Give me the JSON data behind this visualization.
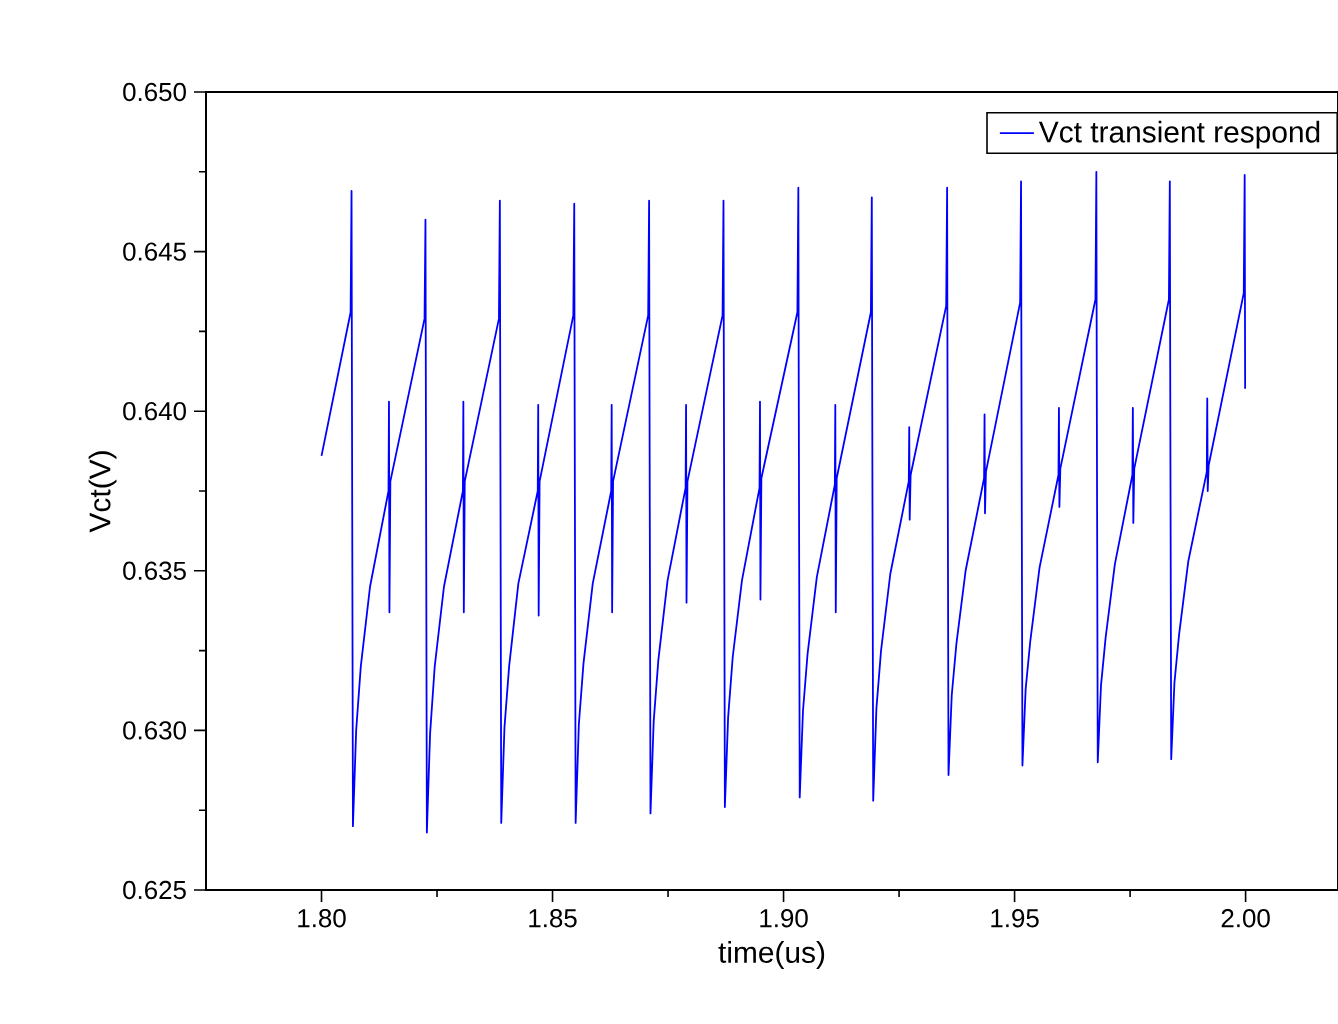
{
  "chart_data": {
    "type": "line",
    "xlabel": "time(us)",
    "ylabel": "Vct(V)",
    "legend": "top right",
    "xlim": [
      1.775,
      2.02
    ],
    "ylim": [
      0.625,
      0.65
    ],
    "xticks": [
      {
        "value": 1.8,
        "label": "1.80"
      },
      {
        "value": 1.825,
        "label": null
      },
      {
        "value": 1.85,
        "label": "1.85"
      },
      {
        "value": 1.875,
        "label": null
      },
      {
        "value": 1.9,
        "label": "1.90"
      },
      {
        "value": 1.925,
        "label": null
      },
      {
        "value": 1.95,
        "label": "1.95"
      },
      {
        "value": 1.975,
        "label": null
      },
      {
        "value": 2.0,
        "label": "2.00"
      }
    ],
    "yticks": [
      0.625,
      {
        "value": 0.6275,
        "label": null
      },
      {
        "value": 0.63,
        "label": "0.630"
      },
      {
        "value": 0.6325,
        "label": null
      },
      0.635,
      {
        "value": 0.6375,
        "label": null
      },
      {
        "value": 0.64,
        "label": "0.640"
      },
      {
        "value": 0.6425,
        "label": null
      },
      0.645,
      {
        "value": 0.6475,
        "label": null
      },
      {
        "value": 0.65,
        "label": "0.650"
      }
    ],
    "series": [
      {
        "name": "Vct transient respond",
        "color": "#0000ff",
        "x": [
          1.8,
          1.8063,
          1.8065,
          1.8066,
          1.8068,
          1.8075,
          1.8085,
          1.8105,
          1.8145,
          1.8146,
          1.8147,
          1.8149,
          1.8223,
          1.8225,
          1.8226,
          1.8228,
          1.8235,
          1.8245,
          1.8265,
          1.8306,
          1.8307,
          1.8308,
          1.831,
          1.8384,
          1.8386,
          1.8387,
          1.8389,
          1.8396,
          1.8406,
          1.8426,
          1.8468,
          1.8469,
          1.847,
          1.8472,
          1.8545,
          1.8547,
          1.8548,
          1.855,
          1.8557,
          1.8567,
          1.8587,
          1.8627,
          1.8628,
          1.8629,
          1.8631,
          1.8707,
          1.8709,
          1.871,
          1.8712,
          1.8719,
          1.8729,
          1.8749,
          1.8788,
          1.8789,
          1.879,
          1.8792,
          1.8868,
          1.887,
          1.8871,
          1.8873,
          1.888,
          1.889,
          1.891,
          1.8948,
          1.8949,
          1.895,
          1.8952,
          1.903,
          1.9032,
          1.9033,
          1.9035,
          1.9042,
          1.9052,
          1.9072,
          1.9111,
          1.9112,
          1.9113,
          1.9115,
          1.9189,
          1.9191,
          1.9192,
          1.9194,
          1.9201,
          1.9211,
          1.9231,
          1.9271,
          1.9272,
          1.9273,
          1.9275,
          1.9352,
          1.9354,
          1.9355,
          1.9357,
          1.9364,
          1.9374,
          1.9394,
          1.9434,
          1.9435,
          1.9436,
          1.9438,
          1.9512,
          1.9514,
          1.9515,
          1.9517,
          1.9524,
          1.9534,
          1.9554,
          1.9595,
          1.9596,
          1.9597,
          1.9599,
          1.9675,
          1.9677,
          1.9678,
          1.968,
          1.9687,
          1.9697,
          1.9717,
          1.9755,
          1.9756,
          1.9757,
          1.9759,
          1.9834,
          1.9836,
          1.9837,
          1.9839,
          1.9846,
          1.9856,
          1.9876,
          1.9916,
          1.9917,
          1.9918,
          1.992,
          1.9996,
          1.9998,
          1.9999
        ],
        "values": [
          0.6386,
          0.6431,
          0.6469,
          0.6398,
          0.627,
          0.63,
          0.632,
          0.6345,
          0.6375,
          0.6403,
          0.6337,
          0.6378,
          0.6429,
          0.646,
          0.6397,
          0.6268,
          0.6299,
          0.632,
          0.6345,
          0.6375,
          0.6403,
          0.6337,
          0.6378,
          0.6429,
          0.6466,
          0.6397,
          0.6271,
          0.6301,
          0.632,
          0.6346,
          0.6375,
          0.6402,
          0.6336,
          0.6378,
          0.643,
          0.6465,
          0.6397,
          0.6271,
          0.6302,
          0.6321,
          0.6346,
          0.6375,
          0.6402,
          0.6337,
          0.6378,
          0.643,
          0.6466,
          0.6398,
          0.6274,
          0.6303,
          0.6322,
          0.6347,
          0.6376,
          0.6402,
          0.634,
          0.6378,
          0.643,
          0.6466,
          0.6398,
          0.6276,
          0.6304,
          0.6323,
          0.6347,
          0.6376,
          0.6403,
          0.6341,
          0.6379,
          0.6431,
          0.647,
          0.6401,
          0.6279,
          0.6306,
          0.6324,
          0.6348,
          0.6377,
          0.6402,
          0.6337,
          0.6379,
          0.6431,
          0.6467,
          0.6399,
          0.6278,
          0.6307,
          0.6325,
          0.6349,
          0.6378,
          0.6395,
          0.6366,
          0.638,
          0.6433,
          0.647,
          0.6401,
          0.6286,
          0.6311,
          0.6327,
          0.635,
          0.6379,
          0.6399,
          0.6368,
          0.6381,
          0.6434,
          0.6472,
          0.6402,
          0.6289,
          0.6313,
          0.6328,
          0.6351,
          0.638,
          0.6401,
          0.637,
          0.6382,
          0.6435,
          0.6475,
          0.6402,
          0.629,
          0.6314,
          0.6329,
          0.6352,
          0.638,
          0.6401,
          0.6365,
          0.6382,
          0.6435,
          0.6472,
          0.6402,
          0.6291,
          0.6315,
          0.633,
          0.6353,
          0.6381,
          0.6404,
          0.6375,
          0.6383,
          0.6437,
          0.6474,
          0.6407
        ]
      }
    ]
  }
}
